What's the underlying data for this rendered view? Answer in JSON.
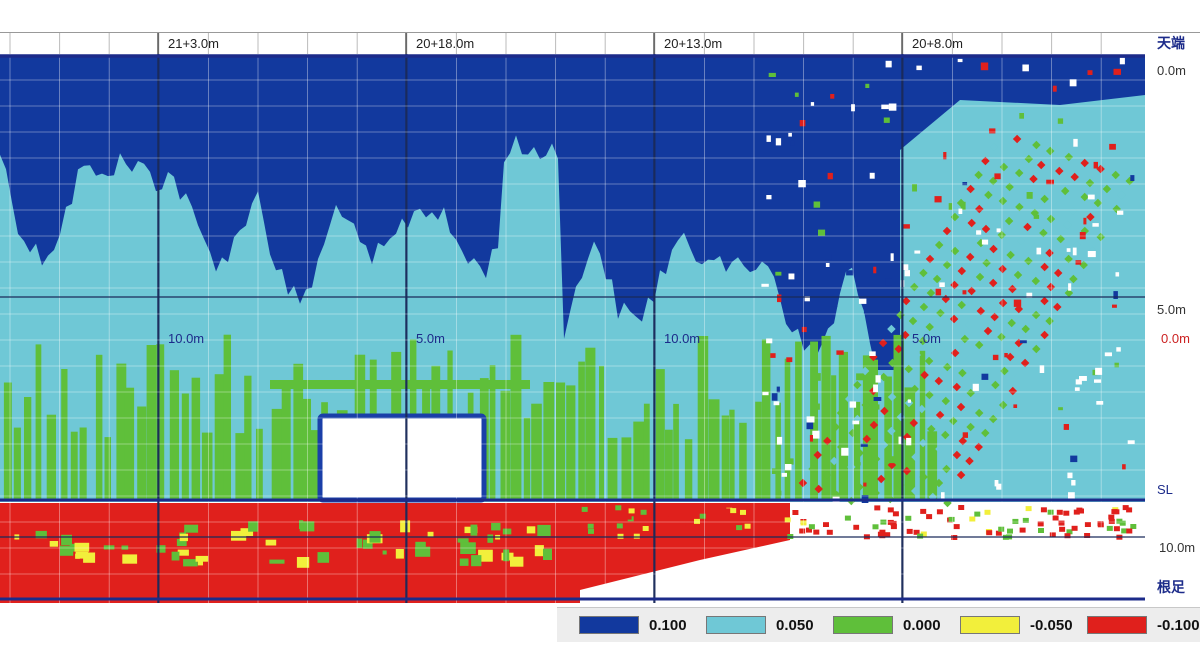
{
  "chart_data": {
    "type": "heatmap",
    "title": "",
    "top_labels": [
      "21+3.0m",
      "20+18.0m",
      "20+13.0m",
      "20+8.0m"
    ],
    "inner_labels": [
      {
        "text": "10.0m",
        "color": "#1c2b8a"
      },
      {
        "text": "5.0m",
        "color": "#1c2b8a"
      },
      {
        "text": "10.0m",
        "color": "#1c2b8a"
      },
      {
        "text": "5.0m",
        "color": "#1c2b8a"
      }
    ],
    "right_labels": [
      {
        "text": "天端",
        "color": "#1c2b8a"
      },
      {
        "text": "0.0m",
        "color": "#333333"
      },
      {
        "text": "5.0m",
        "color": "#333333"
      },
      {
        "text": "0.0m",
        "color": "#cc2222"
      },
      {
        "text": "SL",
        "color": "#1c2b8a"
      },
      {
        "text": "10.0m",
        "color": "#333333"
      },
      {
        "text": "根足",
        "color": "#1c2b8a"
      }
    ],
    "legend": [
      {
        "label": "0.100",
        "color": "#12399e"
      },
      {
        "label": "0.050",
        "color": "#6fc8d6"
      },
      {
        "label": "0.000",
        "color": "#5fbf3a"
      },
      {
        "label": "-0.050",
        "color": "#f2ef3b"
      },
      {
        "label": "-0.100",
        "color": "#e0201c"
      }
    ]
  }
}
